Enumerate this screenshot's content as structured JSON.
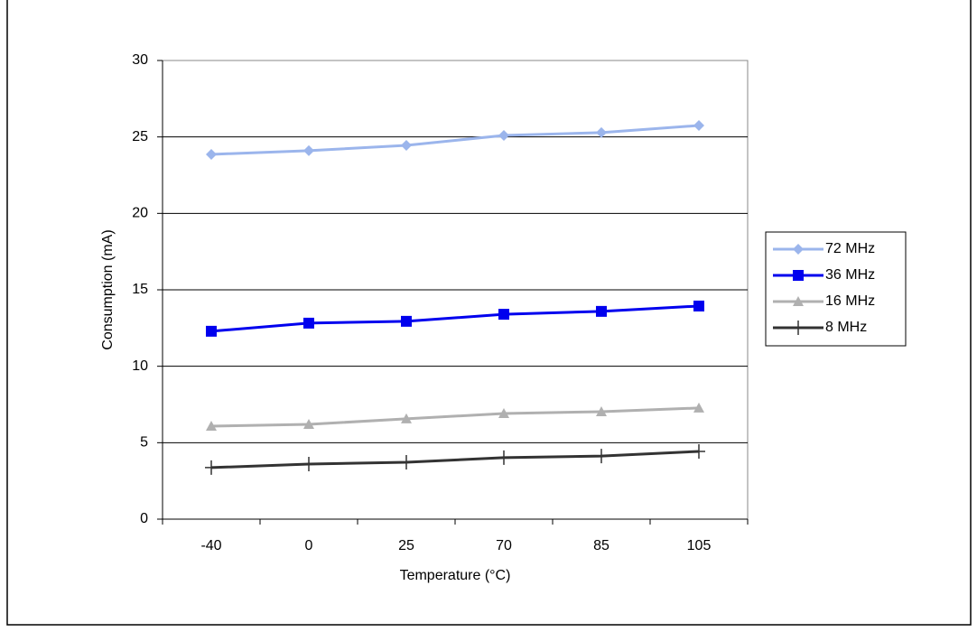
{
  "chart_data": {
    "type": "line",
    "x_label": "Temperature (°C)",
    "y_label": "Consumption (mA)",
    "categories": [
      "-40",
      "0",
      "25",
      "70",
      "85",
      "105"
    ],
    "series": [
      {
        "name": "72 MHz",
        "color": "#9bb5ec",
        "marker": "diamond",
        "values": [
          23.86,
          24.1,
          24.45,
          25.1,
          25.28,
          25.75
        ]
      },
      {
        "name": "36 MHz",
        "color": "#0000ee",
        "marker": "square",
        "values": [
          12.29,
          12.82,
          12.94,
          13.4,
          13.59,
          13.94
        ]
      },
      {
        "name": "16 MHz",
        "color": "#b0b0b0",
        "marker": "triangle",
        "values": [
          6.08,
          6.2,
          6.56,
          6.91,
          7.03,
          7.27
        ]
      },
      {
        "name": "8 MHz",
        "color": "#333333",
        "marker": "plus",
        "values": [
          3.37,
          3.6,
          3.72,
          4.02,
          4.13,
          4.43
        ]
      }
    ],
    "ylim": [
      0,
      30
    ],
    "yticks": [
      0,
      5,
      10,
      15,
      20,
      25,
      30
    ],
    "grid": true,
    "legend": "right"
  }
}
